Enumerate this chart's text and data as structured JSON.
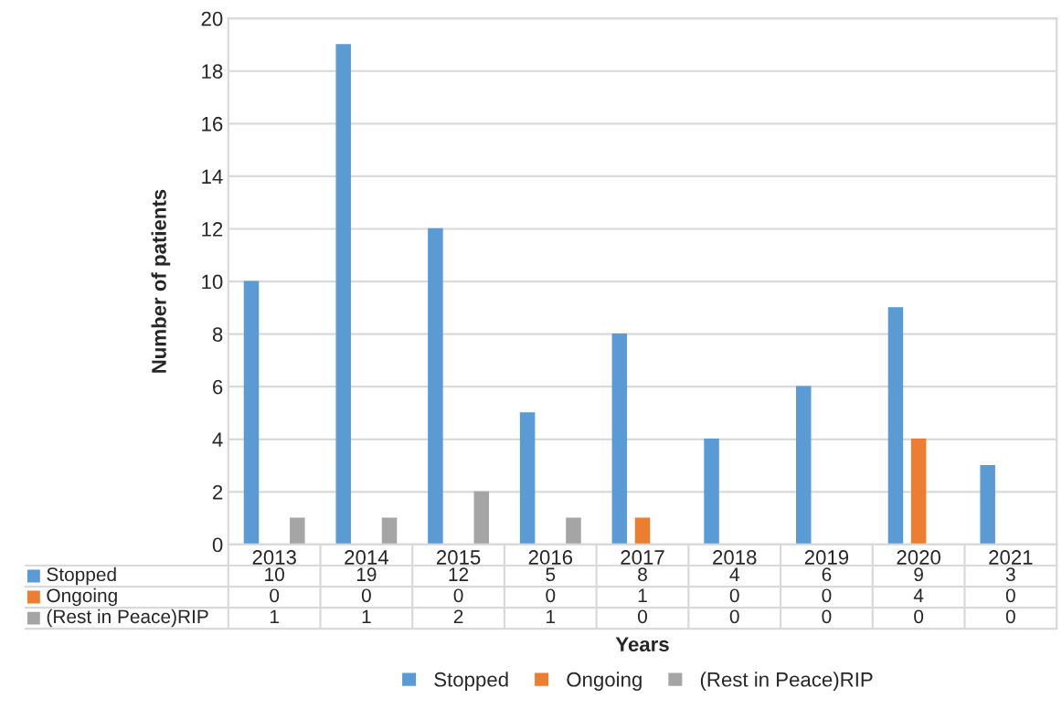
{
  "chart_data": {
    "type": "bar",
    "xlabel": "Years",
    "ylabel": "Number of patients",
    "categories": [
      "2013",
      "2014",
      "2015",
      "2016",
      "2017",
      "2018",
      "2019",
      "2020",
      "2021"
    ],
    "series": [
      {
        "name": "Stopped",
        "color": "#5b9bd5",
        "values": [
          10,
          19,
          12,
          5,
          8,
          4,
          6,
          9,
          3
        ]
      },
      {
        "name": "Ongoing",
        "color": "#ed7d31",
        "values": [
          0,
          0,
          0,
          0,
          1,
          0,
          0,
          4,
          0
        ]
      },
      {
        "name": "(Rest in Peace)RIP",
        "color": "#a5a5a5",
        "values": [
          1,
          1,
          2,
          1,
          0,
          0,
          0,
          0,
          0
        ]
      }
    ],
    "ylim": [
      0,
      20
    ],
    "yticks": [
      0,
      2,
      4,
      6,
      8,
      10,
      12,
      14,
      16,
      18,
      20
    ],
    "grid": "y",
    "legend": "bottom",
    "data_labels": true
  }
}
